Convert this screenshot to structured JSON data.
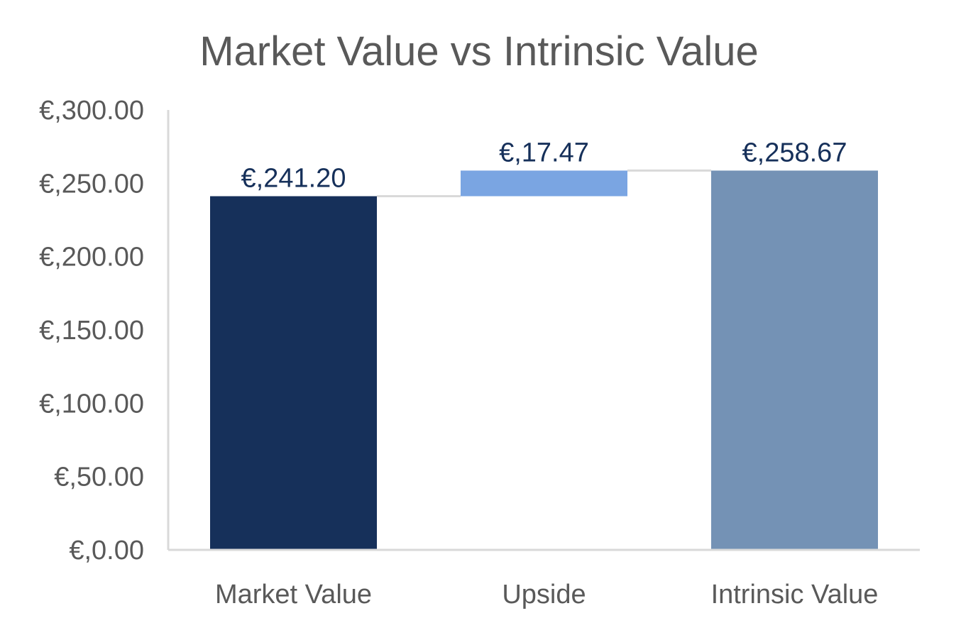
{
  "chart_data": {
    "type": "bar",
    "subtype": "waterfall",
    "title": "Market Value vs Intrinsic Value",
    "xlabel": "",
    "ylabel": "",
    "ylim": [
      0,
      300
    ],
    "y_ticks": [
      "€,0.00",
      "€,50.00",
      "€,100.00",
      "€,150.00",
      "€,200.00",
      "€,250.00",
      "€,300.00"
    ],
    "y_tick_values": [
      0,
      50,
      100,
      150,
      200,
      250,
      300
    ],
    "categories": [
      "Market Value",
      "Upside",
      "Intrinsic Value"
    ],
    "bars": [
      {
        "base": 0,
        "value": 241.2,
        "label": "€,241.20",
        "color": "#16305a"
      },
      {
        "base": 241.2,
        "value": 17.47,
        "label": "€,17.47",
        "color": "#7aa5e2"
      },
      {
        "base": 0,
        "value": 258.67,
        "label": "€,258.67",
        "color": "#7492b5"
      }
    ],
    "connector_color": "#d9d9d9",
    "axis_color": "#d9d9d9",
    "grid": false,
    "legend": "none"
  }
}
